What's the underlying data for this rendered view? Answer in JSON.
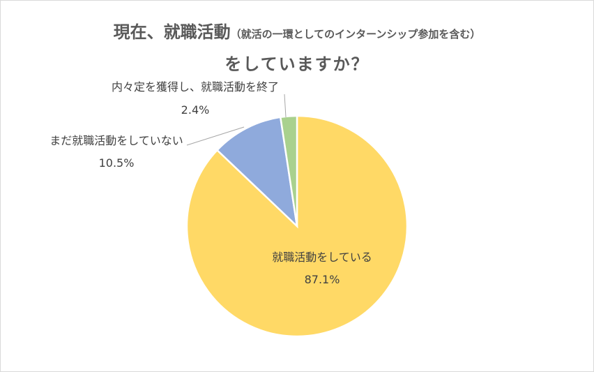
{
  "chart_data": {
    "type": "pie",
    "title_main": "現在、就職活動",
    "title_sub": "（就活の一環としてのインターンシップ参加を含む）",
    "title_line2": "をしていますか？",
    "slices": [
      {
        "label": "就職活動をしている",
        "value": 87.1,
        "value_label": "87.1%",
        "color": "#ffd966"
      },
      {
        "label": "まだ就職活動をしていない",
        "value": 10.5,
        "value_label": "10.5%",
        "color": "#8faadc"
      },
      {
        "label": "内々定を獲得し、就職活動を終了",
        "value": 2.4,
        "value_label": "2.4%",
        "color": "#a9d18e"
      }
    ]
  }
}
